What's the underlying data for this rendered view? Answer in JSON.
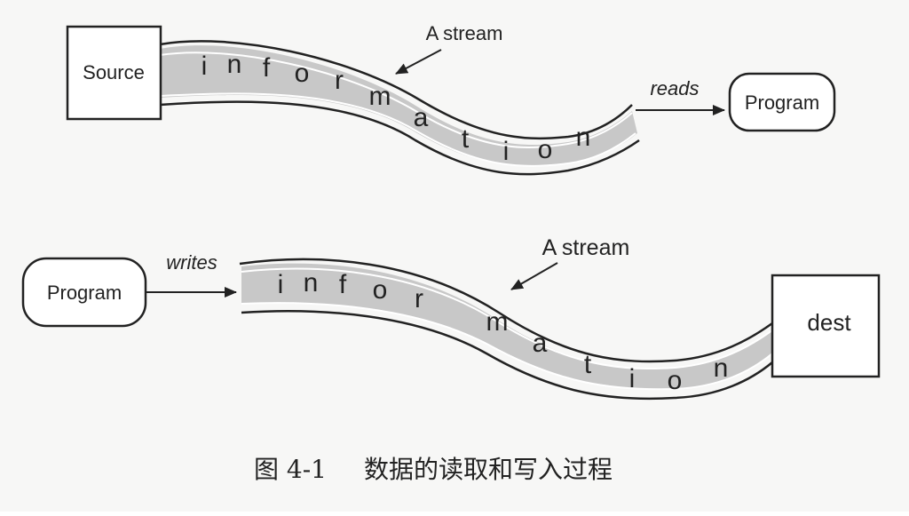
{
  "top_diagram": {
    "source_label": "Source",
    "program_label": "Program",
    "arrow_label": "reads",
    "stream_label": "A stream",
    "stream_letters": [
      "i",
      "n",
      "f",
      "o",
      "r",
      "m",
      "a",
      "t",
      "i",
      "o",
      "n"
    ]
  },
  "bottom_diagram": {
    "program_label": "Program",
    "dest_label": "dest",
    "arrow_label": "writes",
    "stream_label": "A stream",
    "stream_letters": [
      "i",
      "n",
      "f",
      "o",
      "r",
      "m",
      "a",
      "t",
      "i",
      "o",
      "n"
    ]
  },
  "caption": {
    "figure_number": "图 4-1",
    "text": "数据的读取和写入过程"
  },
  "colors": {
    "stream_fill": "#c8c8c8",
    "stroke": "#222222",
    "background": "#f7f7f6"
  }
}
